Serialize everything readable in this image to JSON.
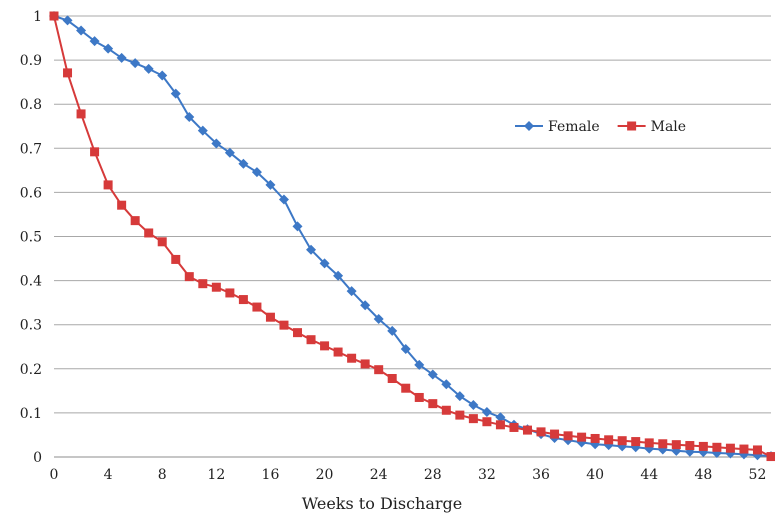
{
  "chart_data": {
    "type": "line",
    "title": "",
    "xlabel": "Weeks to Discharge",
    "ylabel": "",
    "xlim": [
      0,
      53
    ],
    "ylim": [
      0,
      1
    ],
    "xticks": [
      0,
      4,
      8,
      12,
      16,
      20,
      24,
      28,
      32,
      36,
      40,
      44,
      48,
      52
    ],
    "yticks": [
      0,
      0.1,
      0.2,
      0.3,
      0.4,
      0.5,
      0.6,
      0.7,
      0.8,
      0.9,
      1
    ],
    "grid": "horizontal",
    "legend": "right",
    "x": [
      0,
      1,
      2,
      3,
      4,
      5,
      6,
      7,
      8,
      9,
      10,
      11,
      12,
      13,
      14,
      15,
      16,
      17,
      18,
      19,
      20,
      21,
      22,
      23,
      24,
      25,
      26,
      27,
      28,
      29,
      30,
      31,
      32,
      33,
      34,
      35,
      36,
      37,
      38,
      39,
      40,
      41,
      42,
      43,
      44,
      45,
      46,
      47,
      48,
      49,
      50,
      51,
      52,
      53
    ],
    "series": [
      {
        "name": "Female",
        "color": "#3d78c6",
        "marker": "diamond",
        "values": [
          1.0,
          0.99,
          0.967,
          0.943,
          0.926,
          0.905,
          0.893,
          0.88,
          0.865,
          0.824,
          0.771,
          0.74,
          0.711,
          0.69,
          0.665,
          0.646,
          0.617,
          0.584,
          0.523,
          0.47,
          0.439,
          0.411,
          0.376,
          0.344,
          0.313,
          0.286,
          0.245,
          0.209,
          0.187,
          0.165,
          0.138,
          0.118,
          0.102,
          0.09,
          0.073,
          0.063,
          0.052,
          0.043,
          0.038,
          0.033,
          0.029,
          0.027,
          0.024,
          0.022,
          0.019,
          0.017,
          0.014,
          0.012,
          0.011,
          0.009,
          0.008,
          0.006,
          0.004,
          0.002
        ]
      },
      {
        "name": "Male",
        "color": "#d63a3a",
        "marker": "square",
        "values": [
          1.0,
          0.871,
          0.778,
          0.692,
          0.617,
          0.571,
          0.536,
          0.508,
          0.488,
          0.448,
          0.409,
          0.393,
          0.385,
          0.372,
          0.357,
          0.34,
          0.317,
          0.299,
          0.282,
          0.266,
          0.252,
          0.238,
          0.224,
          0.211,
          0.198,
          0.178,
          0.156,
          0.135,
          0.121,
          0.106,
          0.095,
          0.087,
          0.08,
          0.073,
          0.067,
          0.061,
          0.057,
          0.052,
          0.048,
          0.045,
          0.042,
          0.039,
          0.037,
          0.035,
          0.032,
          0.03,
          0.028,
          0.026,
          0.024,
          0.022,
          0.02,
          0.018,
          0.016,
          0.001
        ]
      }
    ]
  }
}
